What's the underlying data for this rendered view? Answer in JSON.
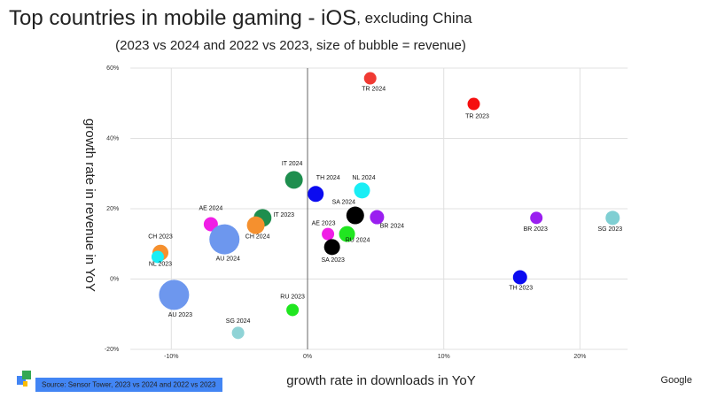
{
  "chart_data": {
    "type": "bubble",
    "title": "Top countries in mobile gaming - iOS",
    "title_note": ", excluding China",
    "subtitle": "(2023 vs 2024 and 2022 vs 2023, size of bubble = revenue)",
    "x_label": "growth rate in downloads in YoY",
    "y_label": "growth rate in revenue in YoY",
    "source": "Source: Sensor Tower, 2023 vs 2024 and 2022 vs 2023",
    "brand": "Google",
    "xlim": [
      -13,
      23.5
    ],
    "ylim": [
      -20,
      60
    ],
    "xticks": [
      {
        "value": -10,
        "label": "-10%"
      },
      {
        "value": 0,
        "label": "0%"
      },
      {
        "value": 10,
        "label": "10%"
      },
      {
        "value": 20,
        "label": "20%"
      }
    ],
    "yticks": [
      {
        "value": -20,
        "label": "-20%"
      },
      {
        "value": 0,
        "label": "0%"
      },
      {
        "value": 20,
        "label": "20%"
      },
      {
        "value": 40,
        "label": "40%"
      },
      {
        "value": 60,
        "label": "60%"
      }
    ],
    "grid": true,
    "points": [
      {
        "label": "TR 2024",
        "x": 4.6,
        "y": 57.1,
        "size": 49,
        "color": "#f03a33"
      },
      {
        "label": "TR 2023",
        "x": 12.2,
        "y": 49.8,
        "size": 49,
        "color": "#f50f0f"
      },
      {
        "label": "IT 2024",
        "x": -1.0,
        "y": 28.2,
        "size": 100,
        "color": "#1e8e4e"
      },
      {
        "label": "TH 2024",
        "x": 0.6,
        "y": 24.2,
        "size": 81,
        "color": "#0b0bf0"
      },
      {
        "label": "NL 2024",
        "x": 4.0,
        "y": 25.2,
        "size": 81,
        "color": "#19eef5"
      },
      {
        "label": "SA 2024",
        "x": 3.5,
        "y": 18.1,
        "size": 100,
        "color": "#000000"
      },
      {
        "label": "BR 2024",
        "x": 5.1,
        "y": 17.6,
        "size": 64,
        "color": "#9a1ff0"
      },
      {
        "label": "AE 2023",
        "x": 1.5,
        "y": 12.8,
        "size": 49,
        "color": "#f01ee6"
      },
      {
        "label": "RU 2024",
        "x": 2.9,
        "y": 12.8,
        "size": 81,
        "color": "#20e620"
      },
      {
        "label": "SA 2023",
        "x": 1.8,
        "y": 9.1,
        "size": 81,
        "color": "#000000"
      },
      {
        "label": "IT 2023",
        "x": -3.3,
        "y": 17.4,
        "size": 100,
        "color": "#1e8e4e"
      },
      {
        "label": "CH 2024",
        "x": -3.8,
        "y": 15.3,
        "size": 100,
        "color": "#f5902e"
      },
      {
        "label": "AE 2024",
        "x": -7.1,
        "y": 15.6,
        "size": 64,
        "color": "#f01ee6"
      },
      {
        "label": "AU 2024",
        "x": -6.1,
        "y": 11.3,
        "size": 289,
        "color": "#6d97ee"
      },
      {
        "label": "CH 2023",
        "x": -10.8,
        "y": 7.5,
        "size": 81,
        "color": "#f5902e"
      },
      {
        "label": "NL 2023",
        "x": -11.0,
        "y": 6.3,
        "size": 49,
        "color": "#19eef5"
      },
      {
        "label": "AU 2023",
        "x": -9.8,
        "y": -4.5,
        "size": 289,
        "color": "#6d97ee"
      },
      {
        "label": "RU 2023",
        "x": -1.1,
        "y": -8.8,
        "size": 49,
        "color": "#20e620"
      },
      {
        "label": "SG 2024",
        "x": -5.1,
        "y": -15.3,
        "size": 49,
        "color": "#8fd3d6"
      },
      {
        "label": "TH 2023",
        "x": 15.6,
        "y": 0.5,
        "size": 64,
        "color": "#0b0bf0"
      },
      {
        "label": "BR 2023",
        "x": 16.8,
        "y": 17.4,
        "size": 49,
        "color": "#9a1ff0"
      },
      {
        "label": "SG 2023",
        "x": 22.4,
        "y": 17.4,
        "size": 64,
        "color": "#7fcfd3"
      }
    ]
  }
}
